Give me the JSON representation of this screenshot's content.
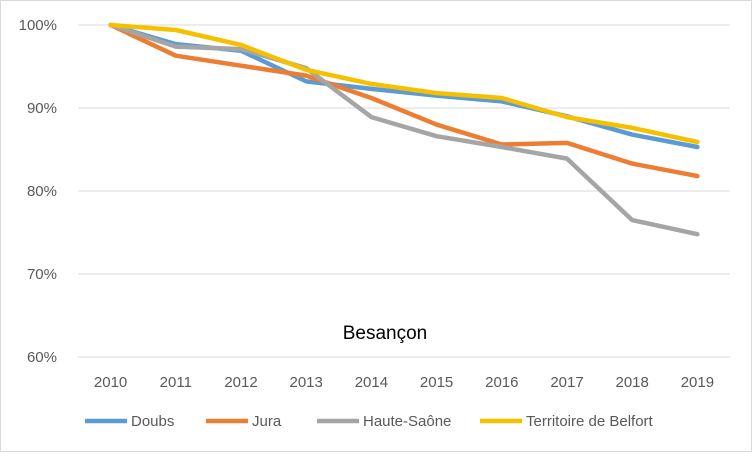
{
  "chart_data": {
    "type": "line",
    "title": "Besançon",
    "xlabel": "",
    "ylabel": "",
    "x": [
      "2010",
      "2011",
      "2012",
      "2013",
      "2014",
      "2015",
      "2016",
      "2017",
      "2018",
      "2019"
    ],
    "ylim": [
      60,
      100
    ],
    "yticks": [
      60,
      70,
      80,
      90,
      100
    ],
    "ytick_labels": [
      "60%",
      "70%",
      "80%",
      "90%",
      "100%"
    ],
    "grid": true,
    "legend_position": "bottom",
    "series": [
      {
        "name": "Doubs",
        "color": "#5b9bd5",
        "values": [
          100,
          97.7,
          96.9,
          93.2,
          92.3,
          91.5,
          90.8,
          89.0,
          86.8,
          85.3
        ]
      },
      {
        "name": "Jura",
        "color": "#ed7d31",
        "values": [
          100,
          96.3,
          95.1,
          93.9,
          91.2,
          88.0,
          85.6,
          85.8,
          83.3,
          81.8
        ]
      },
      {
        "name": "Haute-Saône",
        "color": "#a5a5a5",
        "values": [
          100,
          97.4,
          97.1,
          94.8,
          88.9,
          86.6,
          85.3,
          83.9,
          76.5,
          74.8
        ]
      },
      {
        "name": "Territoire de Belfort",
        "color": "#f5c000",
        "values": [
          100,
          99.4,
          97.6,
          94.6,
          92.9,
          91.8,
          91.2,
          88.9,
          87.6,
          85.9
        ]
      }
    ]
  }
}
